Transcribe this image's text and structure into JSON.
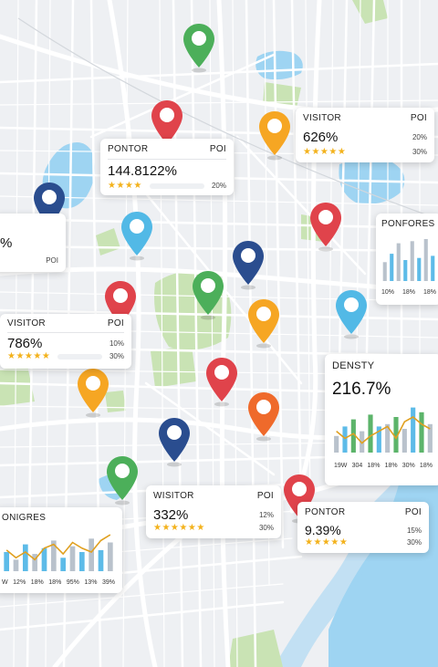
{
  "colors": {
    "pin_green": "#4caf5a",
    "pin_red": "#e0434b",
    "pin_orange": "#f6a623",
    "pin_blue": "#52b9e6",
    "pin_navy": "#2a4d8f",
    "pin_deep_orange": "#ef6a2b",
    "water": "#9ed4f2",
    "park": "#c9e3b4",
    "star": "#f3b21c",
    "bar_blue": "#5dbbe8",
    "bar_gray": "#b9c2cc",
    "bar_green": "#5cb46a",
    "line_orange": "#e0a020"
  },
  "pins": [
    {
      "id": "pin-green-top",
      "color": "green"
    },
    {
      "id": "pin-red-1",
      "color": "red"
    },
    {
      "id": "pin-orange-1",
      "color": "orange"
    },
    {
      "id": "pin-navy-1",
      "color": "navy"
    },
    {
      "id": "pin-blue-1",
      "color": "blue"
    },
    {
      "id": "pin-red-2",
      "color": "red"
    },
    {
      "id": "pin-navy-2",
      "color": "navy"
    },
    {
      "id": "pin-blue-2",
      "color": "blue"
    },
    {
      "id": "pin-red-3",
      "color": "red"
    },
    {
      "id": "pin-green-2",
      "color": "green"
    },
    {
      "id": "pin-orange-2",
      "color": "orange"
    },
    {
      "id": "pin-orange-3",
      "color": "orange"
    },
    {
      "id": "pin-red-4",
      "color": "red"
    },
    {
      "id": "pin-deep-orange",
      "color": "deep_orange"
    },
    {
      "id": "pin-navy-3",
      "color": "navy"
    },
    {
      "id": "pin-green-3",
      "color": "green"
    },
    {
      "id": "pin-red-5",
      "color": "red"
    }
  ],
  "cards": {
    "pontor_top": {
      "label": "PONTOR",
      "poi": "POI",
      "value": "144.8122%",
      "stars": "★★★★",
      "pct": "20%"
    },
    "visitor_top_right": {
      "label": "VISITOR",
      "poi": "POI",
      "value": "626%",
      "stars": "★★★★★",
      "pct": "20%",
      "sub": "30%"
    },
    "left_partial": {
      "value": "%",
      "poi": "POI"
    },
    "ponfores": {
      "label": "PONFORES",
      "ticks": [
        "10%",
        "18%",
        "18%"
      ]
    },
    "visitor_mid_left": {
      "label": "VISITOR",
      "poi": "POI",
      "value": "786%",
      "stars": "★★★★★",
      "pct": "10%",
      "sub": "30%"
    },
    "density": {
      "label": "DENSTY",
      "value": "216.7%",
      "ticks": [
        "19W",
        "304",
        "18%",
        "18%",
        "30%",
        "18%"
      ]
    },
    "onigres": {
      "label": "ONIGRES",
      "ticks": [
        "W",
        "12%",
        "18%",
        "18%",
        "95%",
        "13%",
        "39%"
      ]
    },
    "wisitor_bottom": {
      "label": "WISITOR",
      "poi": "POI",
      "value": "332%",
      "stars": "★★★★★★",
      "pct": "12%",
      "sub": "30%"
    },
    "pontor_bottom": {
      "label": "PONTOR",
      "poi": "POI",
      "value": "9.39%",
      "stars": "★★★★★",
      "pct": "15%",
      "sub": "30%"
    }
  },
  "charts": {
    "ponfores_bars": [
      0.45,
      0.65,
      0.9,
      0.5,
      0.95,
      0.55,
      1.0,
      0.6
    ],
    "density_bars": [
      0.35,
      0.55,
      0.7,
      0.45,
      0.8,
      0.55,
      0.6,
      0.75,
      0.5,
      0.95,
      0.85,
      0.6
    ],
    "density_line": [
      0.45,
      0.3,
      0.4,
      0.2,
      0.35,
      0.45,
      0.55,
      0.3,
      0.65,
      0.75,
      0.6,
      0.5
    ],
    "onigres_bars": [
      0.5,
      0.3,
      0.7,
      0.45,
      0.6,
      0.8,
      0.35,
      0.65,
      0.5,
      0.85,
      0.55,
      0.75
    ],
    "onigres_line": [
      0.55,
      0.35,
      0.5,
      0.3,
      0.6,
      0.7,
      0.45,
      0.75,
      0.6,
      0.5,
      0.8,
      0.95
    ]
  }
}
